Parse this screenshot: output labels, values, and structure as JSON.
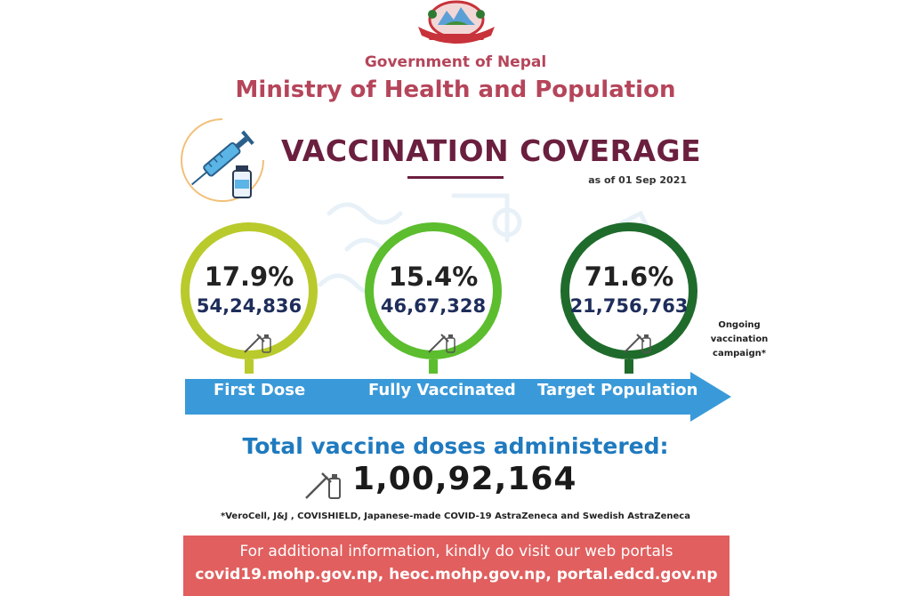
{
  "header": {
    "government": "Government of Nepal",
    "ministry": "Ministry of Health and Population"
  },
  "headline": {
    "title": "VACCINATION COVERAGE",
    "as_of": "as of 01 Sep 2021"
  },
  "metrics": [
    {
      "percent": "17.9%",
      "count": "54,24,836",
      "label": "First Dose",
      "color": "#b9ca2c"
    },
    {
      "percent": "15.4%",
      "count": "46,67,328",
      "label": "Fully Vaccinated",
      "color": "#5cbd2e"
    },
    {
      "percent": "71.6%",
      "count": "21,756,763",
      "label": "Target Population",
      "color": "#1f6b2c"
    }
  ],
  "ongoing_note": "Ongoing vaccination campaign*",
  "total": {
    "label": "Total vaccine doses administered:",
    "value": "1,00,92,164"
  },
  "footnote": "*VeroCell, J&J , COVISHIELD, Japanese-made COVID-19 AstraZeneca and Swedish AstraZeneca",
  "banner": {
    "line1": "For additional information, kindly do visit our web portals",
    "line2": "covid19.mohp.gov.np, heoc.mohp.gov.np, portal.edcd.gov.np"
  },
  "colors": {
    "ministry_red": "#b5455a",
    "headline_maroon": "#6b1f3f",
    "arrow_blue": "#3a9ad9",
    "total_blue": "#1f7abf",
    "banner_red": "#e15f5f"
  },
  "icons": {
    "emblem": "nepal-emblem-icon",
    "badge": "syringe-vial-icon",
    "dose": "vial-syringe-icon"
  }
}
